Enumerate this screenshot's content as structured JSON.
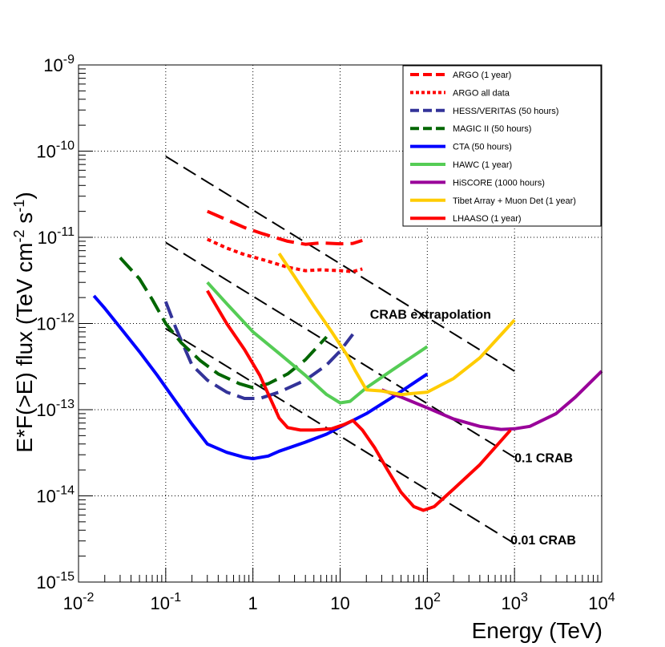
{
  "chart_data": {
    "type": "line",
    "xlabel": "Energy (TeV)",
    "ylabel": {
      "main": "E*F(>E) flux (TeV cm",
      "exp1": "-2",
      "mid": " s",
      "exp2": "-1",
      "close": ")"
    },
    "x_scale": "log",
    "y_scale": "log",
    "xlim": [
      0.01,
      10000
    ],
    "ylim": [
      1e-15,
      1e-09
    ],
    "grid": true,
    "legend_position": "top-right",
    "x_ticks": [
      {
        "value": 0.01,
        "base": "10",
        "exp": "-2"
      },
      {
        "value": 0.1,
        "base": "10",
        "exp": "-1"
      },
      {
        "value": 1,
        "base": "1",
        "exp": ""
      },
      {
        "value": 10,
        "base": "10",
        "exp": ""
      },
      {
        "value": 100,
        "base": "10",
        "exp": "2"
      },
      {
        "value": 1000,
        "base": "10",
        "exp": "3"
      },
      {
        "value": 10000,
        "base": "10",
        "exp": "4"
      }
    ],
    "y_ticks": [
      {
        "value": 1e-09,
        "base": "10",
        "exp": "-9"
      },
      {
        "value": 1e-10,
        "base": "10",
        "exp": "-10"
      },
      {
        "value": 1e-11,
        "base": "10",
        "exp": "-11"
      },
      {
        "value": 1e-12,
        "base": "10",
        "exp": "-12"
      },
      {
        "value": 1e-13,
        "base": "10",
        "exp": "-13"
      },
      {
        "value": 1e-14,
        "base": "10",
        "exp": "-14"
      },
      {
        "value": 1e-15,
        "base": "10",
        "exp": "-15"
      }
    ],
    "reference_lines": [
      {
        "name": "CRAB extrapolation",
        "x": [
          0.1,
          1000
        ],
        "y": [
          8.7e-11,
          2.8e-13
        ],
        "label_x": 22,
        "label_y": 1.3e-12
      },
      {
        "name": "0.1 CRAB",
        "x": [
          0.1,
          1000
        ],
        "y": [
          8.7e-12,
          2.8e-14
        ],
        "label_x": 1000,
        "label_y": 2.8e-14
      },
      {
        "name": "0.01 CRAB",
        "x": [
          0.1,
          1000
        ],
        "y": [
          8.7e-13,
          2.8e-15
        ],
        "label_x": 900,
        "label_y": 3.1e-15
      }
    ],
    "series": [
      {
        "name": "ARGO (1 year)",
        "color": "#ff0000",
        "style": "dash",
        "x": [
          0.3,
          0.5,
          0.8,
          1.3,
          2.5,
          4,
          6,
          10,
          14,
          18
        ],
        "y": [
          2e-11,
          1.6e-11,
          1.3e-11,
          1.1e-11,
          9e-12,
          8.3e-12,
          8.6e-12,
          8.4e-12,
          8.5e-12,
          9.2e-12
        ]
      },
      {
        "name": "ARGO all data",
        "color": "#ff0000",
        "style": "dot",
        "x": [
          0.3,
          0.5,
          0.8,
          1.3,
          2.5,
          4,
          6,
          10,
          14,
          18
        ],
        "y": [
          9.5e-12,
          7.5e-12,
          6.3e-12,
          5.5e-12,
          4.5e-12,
          4.1e-12,
          4.2e-12,
          4.1e-12,
          4e-12,
          4.3e-12
        ]
      },
      {
        "name": "HESS/VERITAS (50 hours)",
        "color": "#333399",
        "style": "dash",
        "x": [
          0.1,
          0.13,
          0.2,
          0.3,
          0.5,
          0.8,
          1.2,
          2,
          4,
          7,
          10,
          14
        ],
        "y": [
          1.8e-12,
          9e-13,
          3.3e-13,
          2.2e-13,
          1.6e-13,
          1.35e-13,
          1.35e-13,
          1.6e-13,
          2.2e-13,
          3.3e-13,
          4.8e-13,
          7.5e-13
        ]
      },
      {
        "name": "MAGIC II (50 hours)",
        "color": "#006600",
        "style": "dash",
        "x": [
          0.03,
          0.05,
          0.07,
          0.1,
          0.15,
          0.25,
          0.4,
          0.7,
          1,
          1.5,
          2.5,
          4,
          7
        ],
        "y": [
          5.8e-12,
          3.3e-12,
          1.9e-12,
          1e-12,
          6e-13,
          3.7e-13,
          2.6e-13,
          2e-13,
          1.8e-13,
          2e-13,
          2.6e-13,
          3.8e-13,
          7e-13
        ]
      },
      {
        "name": "CTA (50 hours)",
        "color": "#0000ff",
        "style": "solid",
        "x": [
          0.015,
          0.02,
          0.03,
          0.05,
          0.08,
          0.12,
          0.2,
          0.3,
          0.5,
          0.8,
          1,
          1.5,
          2,
          4,
          7,
          10,
          20,
          40,
          100
        ],
        "y": [
          2.1e-12,
          1.5e-12,
          9e-13,
          4.7e-13,
          2.5e-13,
          1.4e-13,
          6.8e-14,
          4e-14,
          3.2e-14,
          2.8e-14,
          2.7e-14,
          2.9e-14,
          3.3e-14,
          4.2e-14,
          5.2e-14,
          6.3e-14,
          9e-14,
          1.4e-13,
          2.6e-13
        ]
      },
      {
        "name": "HAWC (1 year)",
        "color": "#55cc55",
        "style": "solid",
        "x": [
          0.3,
          0.5,
          1,
          2,
          4,
          7,
          10,
          13,
          20,
          40,
          100
        ],
        "y": [
          3e-12,
          1.7e-12,
          8e-13,
          4.5e-13,
          2.5e-13,
          1.5e-13,
          1.2e-13,
          1.25e-13,
          1.8e-13,
          2.9e-13,
          5.4e-13
        ]
      },
      {
        "name": "HiSCORE (1000 hours)",
        "color": "#990099",
        "style": "solid",
        "x": [
          30,
          50,
          100,
          200,
          400,
          700,
          1000,
          1500,
          3000,
          5000,
          10000
        ],
        "y": [
          1.7e-13,
          1.4e-13,
          1.05e-13,
          7.8e-14,
          6.4e-14,
          5.9e-14,
          6e-14,
          6.4e-14,
          9e-14,
          1.4e-13,
          2.8e-13
        ]
      },
      {
        "name": "Tibet Array + Muon Det (1 year)",
        "color": "#ffcc00",
        "style": "solid",
        "x": [
          2,
          3,
          5,
          8,
          12,
          15,
          20,
          30,
          50,
          100,
          200,
          400,
          1000
        ],
        "y": [
          6.5e-12,
          3.5e-12,
          1.6e-12,
          8e-13,
          4.3e-13,
          2.8e-13,
          1.7e-13,
          1.65e-13,
          1.5e-13,
          1.6e-13,
          2.3e-13,
          4e-13,
          1.1e-12
        ]
      },
      {
        "name": "LHAASO (1 year)",
        "color": "#ff0000",
        "style": "solid",
        "x": [
          0.3,
          0.5,
          0.8,
          1.2,
          2,
          2.5,
          3.5,
          5,
          8,
          11,
          14,
          18,
          25,
          35,
          50,
          70,
          90,
          120,
          200,
          400,
          900
        ],
        "y": [
          2.4e-12,
          1e-12,
          5e-13,
          2.5e-13,
          8e-14,
          6.2e-14,
          5.8e-14,
          5.8e-14,
          6e-14,
          6.7e-14,
          7.5e-14,
          5.8e-14,
          3.6e-14,
          2e-14,
          1.1e-14,
          7.5e-15,
          6.8e-15,
          7.5e-15,
          1.2e-14,
          2.3e-14,
          5.8e-14
        ]
      }
    ]
  }
}
